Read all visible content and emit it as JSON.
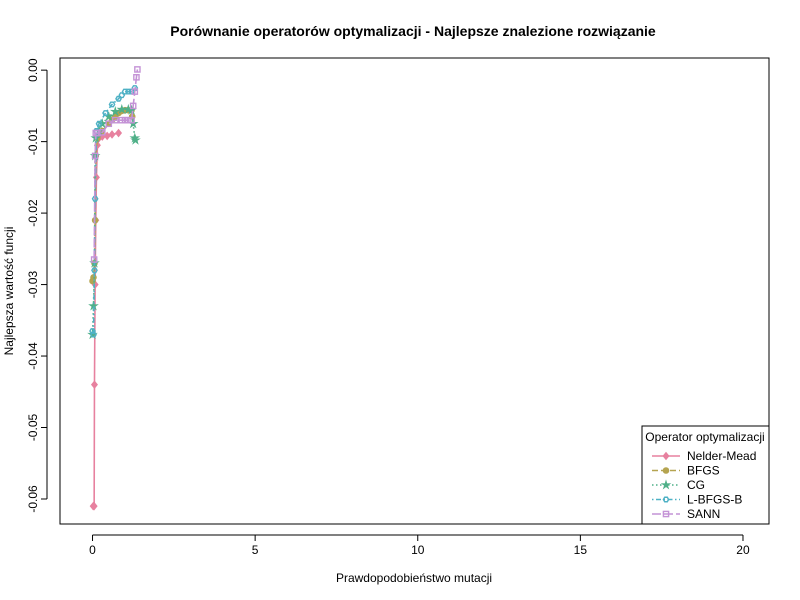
{
  "chart_data": {
    "type": "line",
    "title": "Porównanie operatorów optymalizacji - Najlepsze znalezione rozwiązanie",
    "xlabel": "Prawdopodobieństwo mutacji",
    "ylabel": "Najlepsza wartość funcji",
    "xlim": [
      -1.0,
      20.8
    ],
    "ylim": [
      -0.0635,
      0.0017
    ],
    "x_ticks": [
      0,
      5,
      10,
      15,
      20
    ],
    "x_tick_labels": [
      "0",
      "5",
      "10",
      "15",
      "20"
    ],
    "y_ticks": [
      -0.06,
      -0.05,
      -0.04,
      -0.03,
      -0.02,
      -0.01,
      0.0
    ],
    "y_tick_labels": [
      "-0.06",
      "-0.05",
      "-0.04",
      "-0.03",
      "-0.02",
      "-0.01",
      "0.00"
    ],
    "grid": false,
    "legend": {
      "title": "Operator optymalizacji",
      "placement": "bottom-right"
    },
    "series": [
      {
        "name": "Nelder-Mead",
        "color": "#E7819F",
        "line_style": "solid",
        "marker": "diamond",
        "x": [
          0.02,
          0.05,
          0.06,
          0.08,
          0.1,
          0.12,
          0.15,
          0.2,
          0.3,
          0.45,
          0.6,
          0.8
        ],
        "y": [
          -0.061,
          -0.061,
          -0.044,
          -0.03,
          -0.021,
          -0.015,
          -0.0105,
          -0.0095,
          -0.0093,
          -0.0092,
          -0.009,
          -0.0088
        ]
      },
      {
        "name": "BFGS",
        "color": "#B5A450",
        "line_style": "dashed",
        "marker": "circle",
        "x": [
          0.0,
          0.03,
          0.06,
          0.08,
          0.1,
          0.15,
          0.3,
          0.5,
          0.6,
          0.7,
          0.8,
          0.9,
          1.0,
          1.1,
          1.2,
          1.22
        ],
        "y": [
          -0.0295,
          -0.029,
          -0.027,
          -0.021,
          -0.012,
          -0.0095,
          -0.0085,
          -0.0075,
          -0.007,
          -0.0065,
          -0.006,
          -0.0057,
          -0.0056,
          -0.0056,
          -0.0056,
          -0.0065
        ]
      },
      {
        "name": "CG",
        "color": "#4FB088",
        "line_style": "dotted",
        "marker": "star",
        "x": [
          0.0,
          0.03,
          0.06,
          0.08,
          0.1,
          0.2,
          0.3,
          0.5,
          0.7,
          0.9,
          1.1,
          1.2,
          1.25,
          1.3,
          1.32
        ],
        "y": [
          -0.037,
          -0.033,
          -0.027,
          -0.012,
          -0.0095,
          -0.0085,
          -0.0075,
          -0.0065,
          -0.0058,
          -0.0055,
          -0.0055,
          -0.0056,
          -0.0075,
          -0.0095,
          -0.0098
        ]
      },
      {
        "name": "L-BFGS-B",
        "color": "#4EB1C5",
        "line_style": "dotdash",
        "marker": "hexagon",
        "x": [
          0.0,
          0.03,
          0.06,
          0.08,
          0.12,
          0.2,
          0.4,
          0.6,
          0.8,
          0.9,
          1.0,
          1.1,
          1.2,
          1.3
        ],
        "y": [
          -0.0365,
          -0.037,
          -0.028,
          -0.018,
          -0.0085,
          -0.0075,
          -0.006,
          -0.0048,
          -0.004,
          -0.0035,
          -0.003,
          -0.003,
          -0.003,
          -0.0025
        ]
      },
      {
        "name": "SANN",
        "color": "#C493D6",
        "line_style": "longdash",
        "marker": "square",
        "x": [
          0.05,
          0.08,
          0.1,
          0.15,
          0.3,
          0.5,
          0.7,
          0.9,
          1.0,
          1.1,
          1.2,
          1.25,
          1.3,
          1.35,
          1.38
        ],
        "y": [
          -0.0265,
          -0.012,
          -0.0088,
          -0.0088,
          -0.0087,
          -0.0075,
          -0.007,
          -0.007,
          -0.007,
          -0.007,
          -0.007,
          -0.005,
          -0.003,
          -0.001,
          0.0001
        ]
      }
    ]
  }
}
